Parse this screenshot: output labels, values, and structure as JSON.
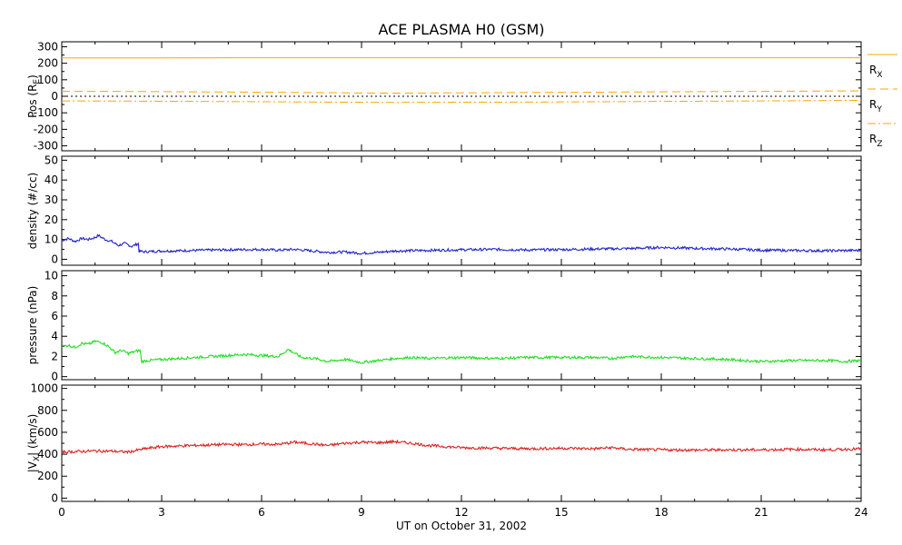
{
  "figure": {
    "title": "ACE PLASMA H0 (GSM)",
    "xlabel": "UT on October 31, 2002"
  },
  "chart_data": [
    {
      "type": "line",
      "id": "pos",
      "ylabel": "Pos (R",
      "ylabel_sub": "E",
      "ylabel_end": ")",
      "ylim": [
        -330,
        330
      ],
      "yticks": [
        300,
        200,
        100,
        0,
        -100,
        -200,
        -300
      ],
      "xlim": [
        0,
        24
      ],
      "zero_line": true,
      "series": [
        {
          "name": "R",
          "sub": "X",
          "color": "#ffa500",
          "dash": "none",
          "x": [
            0,
            3,
            6,
            9,
            12,
            15,
            18,
            21,
            24
          ],
          "values": [
            232,
            232,
            233,
            233,
            233,
            233,
            233,
            233,
            233
          ]
        },
        {
          "name": "R",
          "sub": "Y",
          "color": "#ffa500",
          "dash": "9,5",
          "x": [
            0,
            2,
            4,
            6,
            8,
            9,
            10,
            12,
            14,
            16,
            18,
            20,
            22,
            24
          ],
          "values": [
            30,
            29,
            27,
            25,
            22,
            20,
            19,
            21,
            23,
            25,
            27,
            29,
            31,
            33
          ]
        },
        {
          "name": "R",
          "sub": "Z",
          "color": "#ffa500",
          "dash": "9,3,2,3",
          "x": [
            0,
            2,
            4,
            6,
            8,
            10,
            12,
            14,
            16,
            18,
            20,
            22,
            24
          ],
          "values": [
            -28,
            -29,
            -31,
            -33,
            -35,
            -37,
            -36,
            -35,
            -33,
            -31,
            -29,
            -27,
            -25
          ]
        }
      ]
    },
    {
      "type": "line",
      "id": "density",
      "ylabel": "density (#/cc)",
      "ylim": [
        -3,
        52
      ],
      "yticks": [
        50,
        40,
        30,
        20,
        10,
        0
      ],
      "xlim": [
        0,
        24
      ],
      "series": [
        {
          "color": "#2222cc",
          "x": [
            0,
            0.2,
            0.4,
            0.6,
            0.8,
            1.0,
            1.1,
            1.3,
            1.5,
            1.7,
            1.9,
            2.1,
            2.3,
            2.32,
            2.5,
            3,
            3.5,
            4,
            5,
            6,
            6.5,
            7,
            8,
            8.5,
            9,
            9.5,
            10,
            11,
            12,
            13,
            14,
            15,
            16,
            17,
            18,
            19,
            20,
            21,
            22,
            23,
            24
          ],
          "values": [
            9.5,
            10.5,
            9,
            10.5,
            10,
            11,
            12,
            10,
            9,
            7,
            8,
            6.5,
            8,
            4,
            3.8,
            4.2,
            4.3,
            4.5,
            4.8,
            5,
            4.6,
            5,
            3.5,
            3.7,
            3,
            3.5,
            4.2,
            4.5,
            4.8,
            5,
            4.7,
            4.9,
            5.2,
            5.4,
            6,
            5.5,
            5.2,
            4.6,
            4.4,
            4.3,
            4.5
          ]
        }
      ]
    },
    {
      "type": "line",
      "id": "pressure",
      "ylabel": "pressure (nPa)",
      "ylim": [
        -0.3,
        10.5
      ],
      "yticks": [
        10,
        8,
        6,
        4,
        2,
        0
      ],
      "xlim": [
        0,
        24
      ],
      "series": [
        {
          "color": "#22dd22",
          "x": [
            0,
            0.2,
            0.4,
            0.6,
            0.8,
            1.0,
            1.2,
            1.4,
            1.6,
            1.8,
            2.0,
            2.2,
            2.35,
            2.4,
            2.6,
            3,
            3.5,
            4,
            4.5,
            5,
            5.5,
            6,
            6.5,
            6.8,
            7.2,
            7.6,
            8,
            8.5,
            9,
            9.5,
            10,
            10.5,
            11,
            12,
            13,
            14,
            15,
            16,
            16.5,
            17,
            18,
            19,
            20,
            21,
            22,
            23,
            23.5,
            24
          ],
          "values": [
            3.0,
            3.1,
            2.9,
            3.3,
            3.2,
            3.5,
            3.4,
            3.0,
            2.4,
            2.6,
            2.3,
            2.5,
            2.6,
            1.5,
            1.6,
            1.7,
            1.8,
            1.9,
            2.0,
            2.1,
            2.2,
            2.1,
            2.0,
            2.7,
            1.9,
            1.8,
            1.5,
            1.7,
            1.4,
            1.6,
            1.8,
            1.9,
            1.8,
            1.9,
            1.8,
            1.9,
            1.9,
            1.9,
            1.8,
            2.0,
            1.9,
            1.8,
            1.7,
            1.5,
            1.6,
            1.6,
            1.5,
            1.6
          ]
        }
      ]
    },
    {
      "type": "line",
      "id": "vx",
      "ylabel": "|V",
      "ylabel_sub": "X",
      "ylabel_end": "| (km/s)",
      "ylim": [
        -30,
        1030
      ],
      "yticks": [
        1000,
        800,
        600,
        400,
        200,
        0
      ],
      "xlim": [
        0,
        24
      ],
      "series": [
        {
          "color": "#dd2222",
          "x": [
            0,
            0.5,
            1,
            1.5,
            2,
            2.5,
            3,
            3.5,
            4,
            4.5,
            5,
            5.5,
            6,
            6.5,
            7,
            7.5,
            8,
            8.5,
            9,
            9.5,
            10,
            10.5,
            11,
            12,
            13,
            14,
            15,
            16,
            16.5,
            17,
            18,
            19,
            20,
            21,
            22,
            23,
            24
          ],
          "values": [
            420,
            425,
            430,
            428,
            420,
            450,
            470,
            475,
            480,
            485,
            490,
            488,
            492,
            490,
            510,
            495,
            480,
            500,
            510,
            505,
            515,
            500,
            480,
            460,
            455,
            450,
            455,
            450,
            460,
            445,
            440,
            438,
            440,
            440,
            445,
            440,
            450
          ]
        }
      ]
    }
  ]
}
